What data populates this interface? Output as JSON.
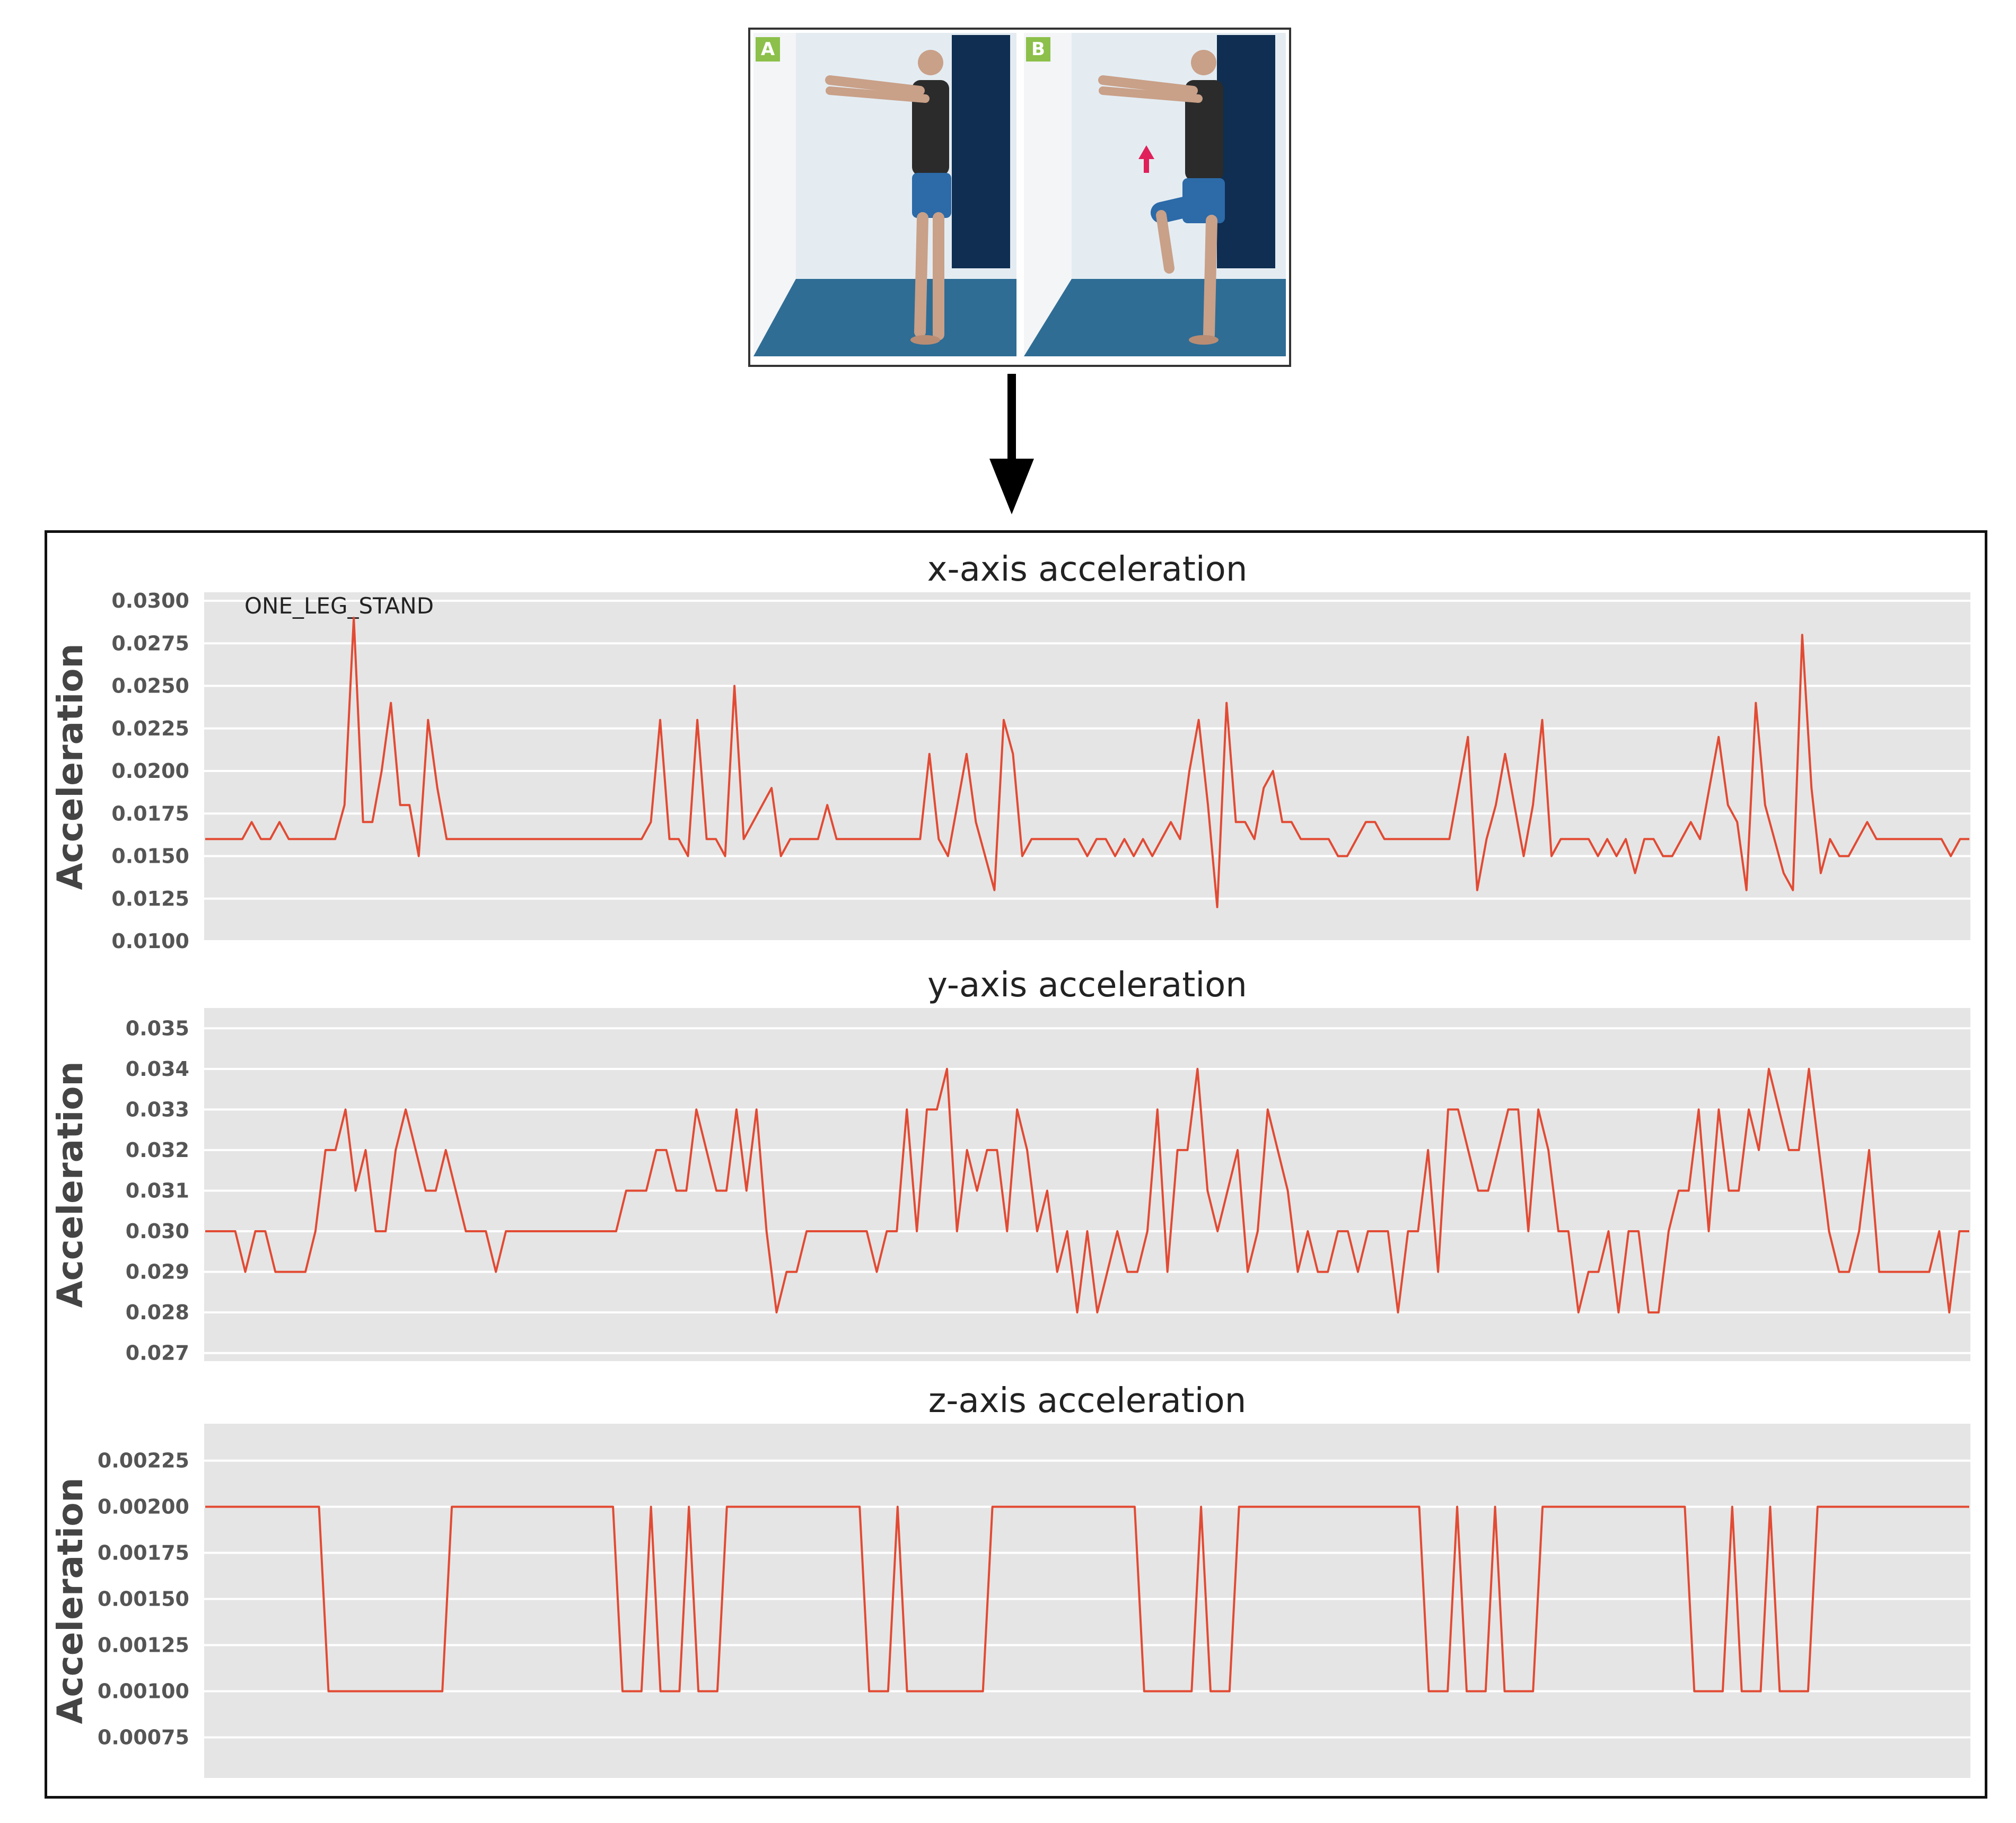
{
  "photos": {
    "panels": [
      {
        "badge": "A",
        "pose": "standing-both-feet"
      },
      {
        "badge": "B",
        "pose": "knee-raised",
        "arrow_icon": "up-arrow-icon"
      }
    ],
    "badge_color": "#8cc04a",
    "wall_color": "#e4ecf2",
    "floor_color": "#2f6d95",
    "curtain_color": "#0f2e52"
  },
  "flow_arrow_icon": "down-arrow-icon",
  "chart_data": [
    {
      "type": "line",
      "title": "x-axis acceleration",
      "ylabel": "Acceleration",
      "xlabel": "",
      "annotation": "ONE_LEG_STAND",
      "ylim": [
        0.01,
        0.0305
      ],
      "yticks": [
        "0.0100",
        "0.0125",
        "0.0150",
        "0.0175",
        "0.0200",
        "0.0225",
        "0.0250",
        "0.0275",
        "0.0300"
      ],
      "grid": true,
      "line_color": "#e24a33",
      "values": [
        0.016,
        0.016,
        0.016,
        0.016,
        0.016,
        0.017,
        0.016,
        0.016,
        0.017,
        0.016,
        0.016,
        0.016,
        0.016,
        0.016,
        0.016,
        0.018,
        0.029,
        0.017,
        0.017,
        0.02,
        0.024,
        0.018,
        0.018,
        0.015,
        0.023,
        0.019,
        0.016,
        0.016,
        0.016,
        0.016,
        0.016,
        0.016,
        0.016,
        0.016,
        0.016,
        0.016,
        0.016,
        0.016,
        0.016,
        0.016,
        0.016,
        0.016,
        0.016,
        0.016,
        0.016,
        0.016,
        0.016,
        0.016,
        0.017,
        0.023,
        0.016,
        0.016,
        0.015,
        0.023,
        0.016,
        0.016,
        0.015,
        0.025,
        0.016,
        0.017,
        0.018,
        0.019,
        0.015,
        0.016,
        0.016,
        0.016,
        0.016,
        0.018,
        0.016,
        0.016,
        0.016,
        0.016,
        0.016,
        0.016,
        0.016,
        0.016,
        0.016,
        0.016,
        0.021,
        0.016,
        0.015,
        0.018,
        0.021,
        0.017,
        0.015,
        0.013,
        0.023,
        0.021,
        0.015,
        0.016,
        0.016,
        0.016,
        0.016,
        0.016,
        0.016,
        0.015,
        0.016,
        0.016,
        0.015,
        0.016,
        0.015,
        0.016,
        0.015,
        0.016,
        0.017,
        0.016,
        0.02,
        0.023,
        0.018,
        0.012,
        0.024,
        0.017,
        0.017,
        0.016,
        0.019,
        0.02,
        0.017,
        0.017,
        0.016,
        0.016,
        0.016,
        0.016,
        0.015,
        0.015,
        0.016,
        0.017,
        0.017,
        0.016,
        0.016,
        0.016,
        0.016,
        0.016,
        0.016,
        0.016,
        0.016,
        0.019,
        0.022,
        0.013,
        0.016,
        0.018,
        0.021,
        0.018,
        0.015,
        0.018,
        0.023,
        0.015,
        0.016,
        0.016,
        0.016,
        0.016,
        0.015,
        0.016,
        0.015,
        0.016,
        0.014,
        0.016,
        0.016,
        0.015,
        0.015,
        0.016,
        0.017,
        0.016,
        0.019,
        0.022,
        0.018,
        0.017,
        0.013,
        0.024,
        0.018,
        0.016,
        0.014,
        0.013,
        0.028,
        0.019,
        0.014,
        0.016,
        0.015,
        0.015,
        0.016,
        0.017,
        0.016,
        0.016,
        0.016,
        0.016,
        0.016,
        0.016,
        0.016,
        0.016,
        0.015,
        0.016,
        0.016
      ]
    },
    {
      "type": "line",
      "title": "y-axis acceleration",
      "ylabel": "Acceleration",
      "xlabel": "",
      "ylim": [
        0.0268,
        0.0355
      ],
      "yticks": [
        "0.027",
        "0.028",
        "0.029",
        "0.030",
        "0.031",
        "0.032",
        "0.033",
        "0.034",
        "0.035"
      ],
      "grid": true,
      "line_color": "#e24a33",
      "values": [
        0.03,
        0.03,
        0.03,
        0.03,
        0.029,
        0.03,
        0.03,
        0.029,
        0.029,
        0.029,
        0.029,
        0.03,
        0.032,
        0.032,
        0.033,
        0.031,
        0.032,
        0.03,
        0.03,
        0.032,
        0.033,
        0.032,
        0.031,
        0.031,
        0.032,
        0.031,
        0.03,
        0.03,
        0.03,
        0.029,
        0.03,
        0.03,
        0.03,
        0.03,
        0.03,
        0.03,
        0.03,
        0.03,
        0.03,
        0.03,
        0.03,
        0.03,
        0.031,
        0.031,
        0.031,
        0.032,
        0.032,
        0.031,
        0.031,
        0.033,
        0.032,
        0.031,
        0.031,
        0.033,
        0.031,
        0.033,
        0.03,
        0.028,
        0.029,
        0.029,
        0.03,
        0.03,
        0.03,
        0.03,
        0.03,
        0.03,
        0.03,
        0.029,
        0.03,
        0.03,
        0.033,
        0.03,
        0.033,
        0.033,
        0.034,
        0.03,
        0.032,
        0.031,
        0.032,
        0.032,
        0.03,
        0.033,
        0.032,
        0.03,
        0.031,
        0.029,
        0.03,
        0.028,
        0.03,
        0.028,
        0.029,
        0.03,
        0.029,
        0.029,
        0.03,
        0.033,
        0.029,
        0.032,
        0.032,
        0.034,
        0.031,
        0.03,
        0.031,
        0.032,
        0.029,
        0.03,
        0.033,
        0.032,
        0.031,
        0.029,
        0.03,
        0.029,
        0.029,
        0.03,
        0.03,
        0.029,
        0.03,
        0.03,
        0.03,
        0.028,
        0.03,
        0.03,
        0.032,
        0.029,
        0.033,
        0.033,
        0.032,
        0.031,
        0.031,
        0.032,
        0.033,
        0.033,
        0.03,
        0.033,
        0.032,
        0.03,
        0.03,
        0.028,
        0.029,
        0.029,
        0.03,
        0.028,
        0.03,
        0.03,
        0.028,
        0.028,
        0.03,
        0.031,
        0.031,
        0.033,
        0.03,
        0.033,
        0.031,
        0.031,
        0.033,
        0.032,
        0.034,
        0.033,
        0.032,
        0.032,
        0.034,
        0.032,
        0.03,
        0.029,
        0.029,
        0.03,
        0.032,
        0.029,
        0.029,
        0.029,
        0.029,
        0.029,
        0.029,
        0.03,
        0.028,
        0.03,
        0.03
      ]
    },
    {
      "type": "line",
      "title": "z-axis acceleration",
      "ylabel": "Acceleration",
      "xlabel": "",
      "ylim": [
        0.00053,
        0.00245
      ],
      "yticks": [
        "0.00075",
        "0.00100",
        "0.00125",
        "0.00150",
        "0.00175",
        "0.00200",
        "0.00225"
      ],
      "grid": true,
      "line_color": "#e24a33",
      "values": [
        0.002,
        0.002,
        0.002,
        0.002,
        0.002,
        0.002,
        0.002,
        0.002,
        0.002,
        0.002,
        0.002,
        0.002,
        0.002,
        0.001,
        0.001,
        0.001,
        0.001,
        0.001,
        0.001,
        0.001,
        0.001,
        0.001,
        0.001,
        0.001,
        0.001,
        0.001,
        0.002,
        0.002,
        0.002,
        0.002,
        0.002,
        0.002,
        0.002,
        0.002,
        0.002,
        0.002,
        0.002,
        0.002,
        0.002,
        0.002,
        0.002,
        0.002,
        0.002,
        0.002,
        0.001,
        0.001,
        0.001,
        0.002,
        0.001,
        0.001,
        0.001,
        0.002,
        0.001,
        0.001,
        0.001,
        0.002,
        0.002,
        0.002,
        0.002,
        0.002,
        0.002,
        0.002,
        0.002,
        0.002,
        0.002,
        0.002,
        0.002,
        0.002,
        0.002,
        0.002,
        0.001,
        0.001,
        0.001,
        0.002,
        0.001,
        0.001,
        0.001,
        0.001,
        0.001,
        0.001,
        0.001,
        0.001,
        0.001,
        0.002,
        0.002,
        0.002,
        0.002,
        0.002,
        0.002,
        0.002,
        0.002,
        0.002,
        0.002,
        0.002,
        0.002,
        0.002,
        0.002,
        0.002,
        0.002,
        0.001,
        0.001,
        0.001,
        0.001,
        0.001,
        0.001,
        0.002,
        0.001,
        0.001,
        0.001,
        0.002,
        0.002,
        0.002,
        0.002,
        0.002,
        0.002,
        0.002,
        0.002,
        0.002,
        0.002,
        0.002,
        0.002,
        0.002,
        0.002,
        0.002,
        0.002,
        0.002,
        0.002,
        0.002,
        0.002,
        0.001,
        0.001,
        0.001,
        0.002,
        0.001,
        0.001,
        0.001,
        0.002,
        0.001,
        0.001,
        0.001,
        0.001,
        0.002,
        0.002,
        0.002,
        0.002,
        0.002,
        0.002,
        0.002,
        0.002,
        0.002,
        0.002,
        0.002,
        0.002,
        0.002,
        0.002,
        0.002,
        0.002,
        0.001,
        0.001,
        0.001,
        0.001,
        0.002,
        0.001,
        0.001,
        0.001,
        0.002,
        0.001,
        0.001,
        0.001,
        0.001,
        0.002,
        0.002,
        0.002,
        0.002,
        0.002,
        0.002,
        0.002,
        0.002,
        0.002,
        0.002,
        0.002,
        0.002,
        0.002,
        0.002,
        0.002,
        0.002,
        0.002
      ]
    }
  ]
}
